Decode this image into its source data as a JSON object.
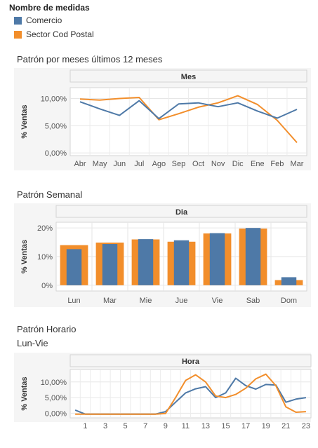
{
  "legend": {
    "title": "Nombre de medidas",
    "items": [
      {
        "label": "Comercio",
        "color": "#4e79a7"
      },
      {
        "label": "Sector Cod Postal",
        "color": "#f28e2b"
      }
    ]
  },
  "sections": {
    "monthly_title": "Patrón por meses últimos 12 meses",
    "weekly_title": "Patrón Semanal",
    "hourly_title": "Patrón Horario",
    "hourly_subtitle": "Lun-Vie"
  },
  "chart_data": [
    {
      "type": "line",
      "header": "Mes",
      "ylabel": "% Ventas",
      "yticks": [
        "10,00%",
        "5,00%",
        "0,00%"
      ],
      "ytick_values": [
        10,
        5,
        0
      ],
      "ylim": [
        -0.5,
        12
      ],
      "categories": [
        "Abr",
        "May",
        "Jun",
        "Jul",
        "Ago",
        "Sep",
        "Oct",
        "Nov",
        "Dic",
        "Ene",
        "Feb",
        "Mar"
      ],
      "series": [
        {
          "name": "Comercio",
          "color": "#4e79a7",
          "values": [
            9.4,
            8.1,
            6.9,
            9.6,
            6.3,
            9.0,
            9.2,
            8.5,
            9.2,
            7.7,
            6.4,
            8.0
          ]
        },
        {
          "name": "Sector Cod Postal",
          "color": "#f28e2b",
          "values": [
            9.9,
            9.7,
            10.0,
            10.2,
            6.1,
            7.2,
            8.4,
            9.2,
            10.5,
            8.9,
            6.0,
            1.9
          ]
        }
      ],
      "grid": true
    },
    {
      "type": "bar",
      "header": "Dia",
      "ylabel": "% Ventas",
      "yticks": [
        "20%",
        "10%",
        "0%"
      ],
      "ytick_values": [
        20,
        10,
        0
      ],
      "ylim": [
        -2,
        22
      ],
      "categories": [
        "Lun",
        "Mar",
        "Mie",
        "Jue",
        "Vie",
        "Sab",
        "Dom"
      ],
      "series": [
        {
          "name": "Sector Cod Postal",
          "color": "#f28e2b",
          "values": [
            14.0,
            14.9,
            16.0,
            15.2,
            18.1,
            19.8,
            1.8
          ]
        },
        {
          "name": "Comercio",
          "color": "#4e79a7",
          "values": [
            12.6,
            14.4,
            16.1,
            15.7,
            18.2,
            20.0,
            2.8
          ]
        }
      ],
      "grid": true
    },
    {
      "type": "line",
      "header": "Hora",
      "ylabel": "% Ventas",
      "yticks": [
        "10,00%",
        "5,00%",
        "0,00%"
      ],
      "ytick_values": [
        10,
        5,
        0
      ],
      "ylim": [
        -1.5,
        14
      ],
      "x": [
        0,
        1,
        2,
        3,
        4,
        5,
        6,
        7,
        8,
        9,
        10,
        11,
        12,
        13,
        14,
        15,
        16,
        17,
        18,
        19,
        20,
        21,
        22,
        23
      ],
      "xticks": [
        "1",
        "3",
        "5",
        "7",
        "9",
        "11",
        "13",
        "15",
        "17",
        "19",
        "21",
        "23"
      ],
      "series": [
        {
          "name": "Comercio",
          "color": "#4e79a7",
          "values": [
            1.0,
            -0.3,
            -0.3,
            -0.3,
            -0.3,
            -0.3,
            -0.3,
            -0.3,
            -0.3,
            0.5,
            3.5,
            6.5,
            7.8,
            8.5,
            5.0,
            6.5,
            11.2,
            8.8,
            7.7,
            9.2,
            9.0,
            3.5,
            4.5,
            5.0
          ]
        },
        {
          "name": "Sector Cod Postal",
          "color": "#f28e2b",
          "values": [
            -0.3,
            -0.3,
            -0.3,
            -0.3,
            -0.3,
            -0.3,
            -0.3,
            -0.3,
            -0.3,
            -0.1,
            5.0,
            10.5,
            12.3,
            10.0,
            5.5,
            5.0,
            6.0,
            8.0,
            11.0,
            12.5,
            8.8,
            2.0,
            0.3,
            0.5
          ]
        }
      ],
      "grid": true
    }
  ]
}
